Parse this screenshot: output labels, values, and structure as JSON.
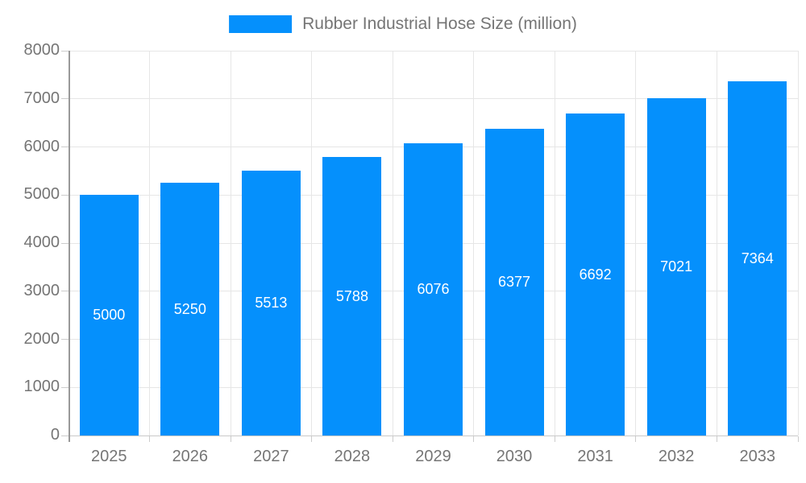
{
  "legend": {
    "label": "Rubber Industrial Hose Size (million)"
  },
  "chart_data": {
    "type": "bar",
    "title": "Rubber Industrial Hose Size (million)",
    "categories": [
      "2025",
      "2026",
      "2027",
      "2028",
      "2029",
      "2030",
      "2031",
      "2032",
      "2033"
    ],
    "values": [
      5000,
      5250,
      5513,
      5788,
      6076,
      6377,
      6692,
      7021,
      7364
    ],
    "xlabel": "",
    "ylabel": "",
    "ylim": [
      0,
      8000
    ],
    "yticks": [
      0,
      1000,
      2000,
      3000,
      4000,
      5000,
      6000,
      7000,
      8000
    ],
    "grid": true,
    "legend_position": "top-center",
    "value_labels": "inside-center"
  },
  "colors": {
    "bar": "#0590fc",
    "axis_text": "#757575",
    "grid": "#e6e6e6",
    "y_axis_line": "#999999",
    "baseline": "#c9c9c9",
    "value_label": "#ffffff",
    "background": "#ffffff"
  }
}
